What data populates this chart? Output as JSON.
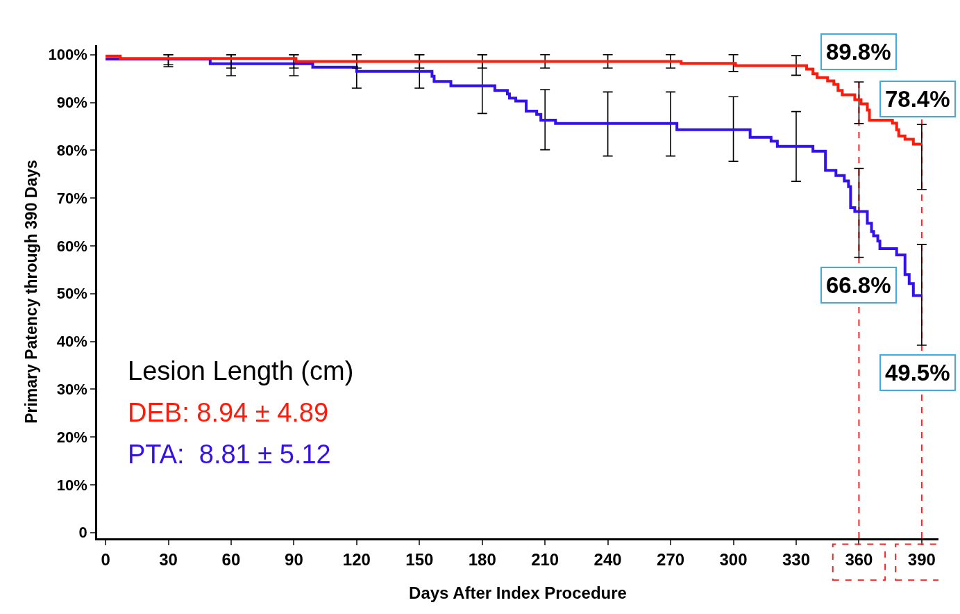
{
  "chart_data": {
    "type": "step",
    "xlabel": "Days After Index Procedure",
    "ylabel": "Primary Patency through 390 Days",
    "xlim": [
      -4,
      398
    ],
    "ylim": [
      -1.2,
      102
    ],
    "xticks": [
      0,
      30,
      60,
      90,
      120,
      150,
      180,
      210,
      240,
      270,
      300,
      330,
      360,
      390
    ],
    "yticks": [
      {
        "value": 0,
        "label": "0"
      },
      {
        "value": 10,
        "label": "10%"
      },
      {
        "value": 20,
        "label": "20%"
      },
      {
        "value": 30,
        "label": "30%"
      },
      {
        "value": 40,
        "label": "40%"
      },
      {
        "value": 50,
        "label": "50%"
      },
      {
        "value": 60,
        "label": "60%"
      },
      {
        "value": 70,
        "label": "70%"
      },
      {
        "value": 80,
        "label": "80%"
      },
      {
        "value": 90,
        "label": "90%"
      },
      {
        "value": 100,
        "label": "100%"
      }
    ],
    "grid": false,
    "legend": "bottom left",
    "legend_title": "Lesion Length (cm)",
    "line_style": "solid",
    "marker": "none",
    "series": [
      {
        "name": "PTA:  8.81 ± 5.12",
        "color": "#3311ee",
        "x": [
          0,
          30,
          50,
          60,
          90,
          99,
          120,
          150,
          156,
          157,
          165,
          180,
          186,
          192,
          193,
          196,
          201,
          206,
          208,
          210,
          215,
          240,
          270,
          273,
          300,
          308,
          318,
          321,
          330,
          338,
          344,
          349,
          353,
          355,
          356,
          358,
          360,
          364,
          366,
          367,
          369,
          370,
          378,
          382,
          384,
          386,
          390
        ],
        "values": [
          99.1,
          99.1,
          98.1,
          98.1,
          98.1,
          97.4,
          96.5,
          96.5,
          95.5,
          94.4,
          93.5,
          93.5,
          92.5,
          91.8,
          90.9,
          90.3,
          88.2,
          87.5,
          86.3,
          86.3,
          85.6,
          85.6,
          85.6,
          84.3,
          84.3,
          82.7,
          81.9,
          80.8,
          80.8,
          79.8,
          75.8,
          74.7,
          73.6,
          72.4,
          68.0,
          67.2,
          67.2,
          64.7,
          63.0,
          62.1,
          61.0,
          59.4,
          58.1,
          54.0,
          52.1,
          49.6,
          49.6
        ],
        "errors": [
          null,
          [
            97.5,
            100
          ],
          null,
          [
            95.6,
            100
          ],
          [
            95.6,
            100
          ],
          null,
          [
            93.0,
            100
          ],
          [
            93.0,
            100
          ],
          null,
          null,
          null,
          [
            87.7,
            100
          ],
          null,
          null,
          null,
          null,
          null,
          null,
          null,
          [
            80.1,
            92.7
          ],
          null,
          [
            78.8,
            92.2
          ],
          [
            78.8,
            92.2
          ],
          null,
          [
            77.7,
            91.2
          ],
          null,
          null,
          null,
          [
            73.5,
            88.1
          ],
          null,
          null,
          null,
          null,
          null,
          null,
          null,
          [
            57.6,
            76.2
          ],
          null,
          null,
          null,
          null,
          null,
          null,
          null,
          null,
          null,
          [
            39.2,
            60.3
          ]
        ]
      },
      {
        "name": "DEB: 8.94 ± 4.89",
        "color": "#ff1a0a",
        "x": [
          0,
          7,
          30,
          60,
          90,
          91,
          120,
          150,
          180,
          210,
          240,
          270,
          275,
          300,
          301,
          330,
          335,
          338,
          340,
          345,
          348,
          350,
          352,
          358,
          360,
          361,
          364,
          365,
          376,
          378,
          379,
          382,
          386,
          390
        ],
        "values": [
          99.7,
          99.2,
          99.2,
          99.2,
          99.2,
          98.6,
          98.6,
          98.6,
          98.6,
          98.6,
          98.6,
          98.6,
          98.2,
          98.2,
          97.7,
          97.7,
          97.0,
          96.0,
          95.2,
          94.5,
          93.8,
          92.5,
          91.6,
          90.6,
          90.6,
          89.7,
          88.4,
          86.3,
          85.7,
          84.3,
          83.0,
          82.3,
          81.3,
          81.3
        ],
        "errors": [
          null,
          null,
          [
            97.9,
            100
          ],
          [
            97.2,
            100
          ],
          [
            97.2,
            100
          ],
          null,
          [
            97.2,
            100
          ],
          [
            97.2,
            100
          ],
          [
            97.2,
            100
          ],
          [
            97.2,
            100
          ],
          [
            97.2,
            100
          ],
          [
            97.2,
            100
          ],
          null,
          [
            96.5,
            100
          ],
          null,
          [
            95.7,
            99.8
          ],
          null,
          null,
          null,
          null,
          null,
          null,
          null,
          null,
          [
            85.6,
            94.3
          ],
          null,
          null,
          null,
          null,
          null,
          null,
          null,
          null,
          [
            71.8,
            85.4
          ]
        ]
      }
    ],
    "ref_lines": [
      {
        "axis": "x",
        "value": 360,
        "color": "#ff2020",
        "line_style": "dashed"
      },
      {
        "axis": "x",
        "value": 390,
        "color": "#ff2020",
        "line_style": "dashed"
      }
    ],
    "annotations": [
      "89.8%",
      "78.4%",
      "66.8%",
      "49.5%"
    ]
  }
}
